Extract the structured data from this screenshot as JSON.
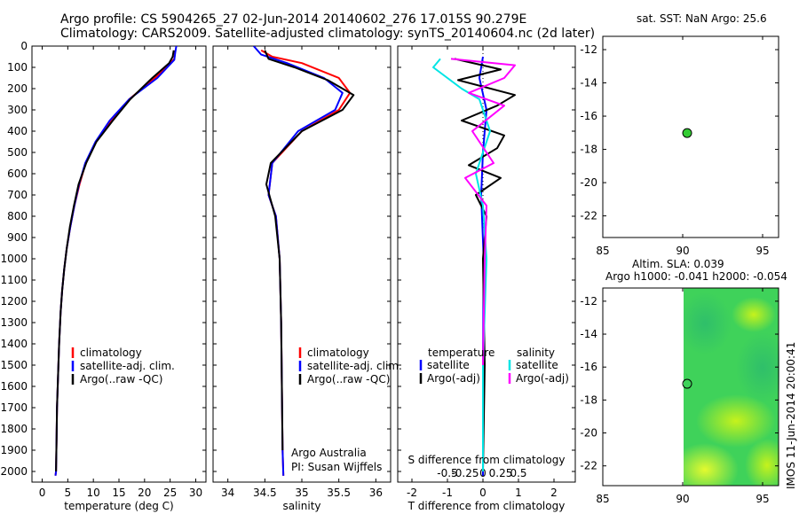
{
  "header": {
    "title_line1": "Argo profile: CS 5904265_27 02-Jun-2014 20140602_276 17.015S 90.279E",
    "title_line2": "Climatology: CARS2009. Satellite-adjusted climatology: synTS_20140604.nc (2d later)"
  },
  "colors": {
    "climatology": "#ff0000",
    "satellite": "#0000ff",
    "argo": "#000000",
    "salinity_satellite": "#00e5e5",
    "salinity_argo": "#ff00ff",
    "point_fill": "#33cc33"
  },
  "depth_axis": {
    "ylim": [
      0,
      2050
    ],
    "ticks": [
      0,
      100,
      200,
      300,
      400,
      500,
      600,
      700,
      800,
      900,
      1000,
      1100,
      1200,
      1300,
      1400,
      1500,
      1600,
      1700,
      1800,
      1900,
      2000
    ]
  },
  "chart_data": [
    {
      "type": "line",
      "id": "temperature",
      "xlabel": "temperature (deg C)",
      "xlim": [
        -2,
        32
      ],
      "xticks": [
        0,
        5,
        10,
        15,
        20,
        25,
        30
      ],
      "legend": [
        "climatology",
        "satellite-adj. clim.",
        "Argo(..raw -QC)"
      ],
      "series": [
        {
          "name": "climatology",
          "color": "#ff0000",
          "x": [
            26,
            25.8,
            25.4,
            22,
            17,
            13.5,
            10.5,
            8.5,
            7.3,
            6.3,
            5.5,
            4.8,
            4.3,
            3.9,
            3.6,
            3.3,
            3.1,
            2.9,
            2.8,
            2.7,
            2.6
          ],
          "y": [
            20,
            60,
            70,
            150,
            250,
            350,
            450,
            550,
            650,
            750,
            850,
            950,
            1050,
            1150,
            1250,
            1400,
            1550,
            1700,
            1850,
            2000,
            2020
          ]
        },
        {
          "name": "satellite-adj. clim.",
          "color": "#0000ff",
          "x": [
            26.2,
            26,
            25.8,
            22.5,
            17,
            13.2,
            10.4,
            8.4,
            7.2,
            6.3,
            5.5,
            4.8,
            4.3,
            3.9,
            3.6,
            3.3,
            3.1,
            2.9,
            2.8,
            2.7,
            2.6
          ],
          "y": [
            0,
            30,
            65,
            150,
            250,
            350,
            450,
            550,
            650,
            750,
            850,
            950,
            1050,
            1150,
            1250,
            1400,
            1550,
            1700,
            1850,
            2000,
            2020
          ]
        },
        {
          "name": "Argo(..raw -QC)",
          "color": "#000000",
          "x": [
            25.7,
            25.5,
            24.8,
            21.5,
            17.2,
            13.8,
            10.6,
            8.6,
            7.1,
            6.2,
            5.4,
            4.8,
            4.3,
            3.9,
            3.6,
            3.3,
            3.1,
            2.9,
            2.8,
            2.7
          ],
          "y": [
            20,
            50,
            80,
            150,
            250,
            350,
            450,
            550,
            650,
            750,
            850,
            950,
            1050,
            1150,
            1250,
            1400,
            1550,
            1700,
            1850,
            2000
          ]
        }
      ]
    },
    {
      "type": "line",
      "id": "salinity",
      "xlabel": "salinity",
      "xlim": [
        33.8,
        36.2
      ],
      "xticks": [
        34,
        34.5,
        35,
        35.5,
        36
      ],
      "legend": [
        "climatology",
        "satellite-adj. clim.",
        "Argo(..raw -QC)"
      ],
      "annotation": [
        "Argo Australia",
        "PI: Susan Wijffels"
      ],
      "series": [
        {
          "name": "climatology",
          "color": "#ff0000",
          "x": [
            34.45,
            34.6,
            35.0,
            35.5,
            35.65,
            35.5,
            35.0,
            34.6,
            34.55,
            34.65,
            34.7,
            34.72,
            34.73,
            34.74,
            34.75
          ],
          "y": [
            20,
            50,
            80,
            150,
            220,
            300,
            400,
            550,
            700,
            800,
            1000,
            1300,
            1600,
            1900,
            2020
          ]
        },
        {
          "name": "satellite-adj. clim.",
          "color": "#0000ff",
          "x": [
            34.35,
            34.45,
            34.8,
            35.3,
            35.55,
            35.45,
            34.95,
            34.6,
            34.55,
            34.65,
            34.7,
            34.72,
            34.73,
            34.74,
            34.75
          ],
          "y": [
            0,
            40,
            80,
            150,
            220,
            300,
            400,
            550,
            700,
            800,
            1000,
            1300,
            1600,
            1900,
            2020
          ]
        },
        {
          "name": "Argo(..raw -QC)",
          "color": "#000000",
          "x": [
            34.5,
            34.55,
            34.9,
            35.35,
            35.7,
            35.55,
            35.0,
            34.58,
            34.52,
            34.64,
            34.7,
            34.72,
            34.73,
            34.74
          ],
          "y": [
            20,
            60,
            100,
            160,
            230,
            300,
            400,
            550,
            650,
            800,
            1000,
            1300,
            1600,
            1900
          ]
        }
      ]
    },
    {
      "type": "line",
      "id": "differences",
      "xlabel_bottom": "T difference from climatology",
      "xlabel_top": "S difference from climatology",
      "xlim": [
        -2.4,
        2.6
      ],
      "xticks_T": [
        -2,
        -1,
        0,
        1,
        2
      ],
      "xticks_S": [
        -0.5,
        -0.25,
        0,
        0.25,
        0.5
      ],
      "legend_temperature_title": "temperature",
      "legend_salinity_title": "salinity",
      "legend_temperature": [
        "satellite",
        "Argo(-adj)"
      ],
      "legend_salinity": [
        "satellite",
        "Argo(-adj)"
      ],
      "series": [
        {
          "name": "temperature satellite",
          "color": "#0000ff",
          "x": [
            0,
            -0.1,
            0.1,
            0,
            -0.05,
            0.02,
            0,
            0,
            0
          ],
          "y": [
            50,
            150,
            300,
            500,
            700,
            1000,
            1500,
            1900,
            2020
          ]
        },
        {
          "name": "temperature Argo(-adj)",
          "color": "#000000",
          "x": [
            -0.8,
            0.5,
            -0.7,
            0.9,
            0.4,
            -0.6,
            0.6,
            0.4,
            -0.4,
            0.5,
            -0.2,
            0.1,
            0,
            0.05,
            0
          ],
          "y": [
            60,
            110,
            160,
            230,
            280,
            350,
            420,
            480,
            560,
            620,
            700,
            800,
            1000,
            1500,
            2000
          ]
        },
        {
          "name": "salinity satellite",
          "color": "#00e5e5",
          "x": [
            -1.2,
            -1.4,
            -1.0,
            -0.6,
            -0.1,
            0.2,
            -0.2,
            0,
            0.1,
            0,
            0
          ],
          "y": [
            60,
            100,
            150,
            200,
            250,
            400,
            600,
            750,
            1000,
            1500,
            2000
          ]
        },
        {
          "name": "salinity Argo(-adj)",
          "color": "#ff00ff",
          "x": [
            -0.9,
            0.9,
            0.6,
            -0.4,
            0.6,
            -0.3,
            0.3,
            -0.5,
            0.1,
            0.05,
            0
          ],
          "y": [
            60,
            90,
            150,
            220,
            280,
            400,
            550,
            620,
            750,
            1000,
            1500
          ]
        }
      ]
    }
  ],
  "map_top": {
    "title": "sat. SST: NaN Argo: 25.6",
    "xlim": [
      85,
      96
    ],
    "ylim": [
      -23.3,
      -11.2
    ],
    "xticks": [
      85,
      90,
      95
    ],
    "yticks": [
      -12,
      -14,
      -16,
      -18,
      -20,
      -22
    ],
    "point": {
      "lon": 90.279,
      "lat": -17.015
    }
  },
  "map_bottom": {
    "title_line1": "Altim. SLA: 0.039",
    "title_line2": "Argo h1000: -0.041 h2000: -0.054",
    "timestamp": "IMOS 11-Jun-2014 20:00:41",
    "xlim": [
      85,
      96
    ],
    "ylim": [
      -23.2,
      -11.2
    ],
    "xticks": [
      85,
      90,
      95
    ],
    "yticks": [
      -12,
      -14,
      -16,
      -18,
      -20,
      -22
    ],
    "field_lon_start": 90,
    "point": {
      "lon": 90.279,
      "lat": -17.015
    }
  }
}
